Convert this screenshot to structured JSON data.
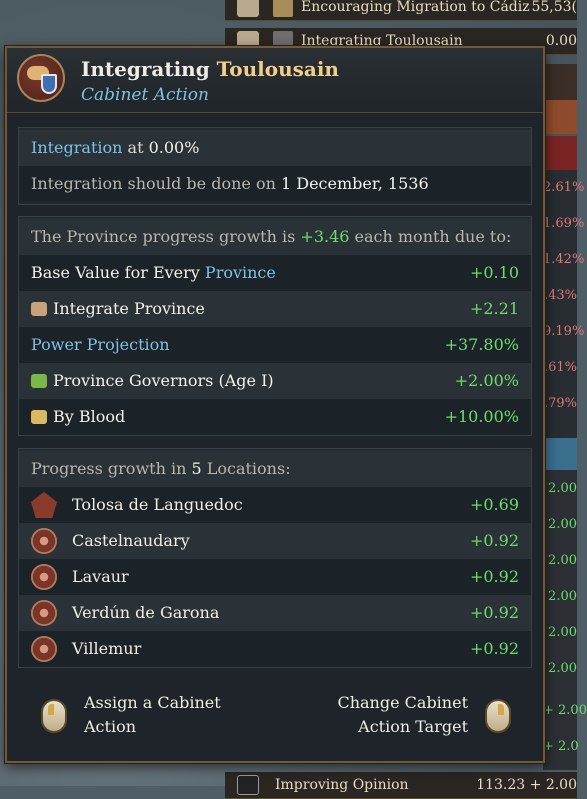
{
  "background_list": [
    {
      "name": "Encouraging Migration to Cádiz",
      "value": "55,53("
    },
    {
      "name": "Integrating Toulousain",
      "value": "0.00"
    }
  ],
  "background_bottom": {
    "name": "Improving Opinion",
    "value": "113.23 + 2.00"
  },
  "side_values": [
    {
      "text": "2.61%",
      "color": "#e07878"
    },
    {
      "text": "1.69%",
      "color": "#e07878"
    },
    {
      "text": "1.42%",
      "color": "#e07878"
    },
    {
      "text": ".43%",
      "color": "#e07878"
    },
    {
      "text": "9.19%",
      "color": "#e07878"
    },
    {
      "text": ".61%",
      "color": "#e07878"
    },
    {
      "text": ".79%",
      "color": "#e07878"
    },
    {
      "text": "2.00",
      "color": "#6ddc6d"
    },
    {
      "text": "2.00",
      "color": "#6ddc6d"
    },
    {
      "text": "2.00",
      "color": "#6ddc6d"
    },
    {
      "text": "2.00",
      "color": "#6ddc6d"
    },
    {
      "text": "2.00",
      "color": "#6ddc6d"
    },
    {
      "text": "2.00",
      "color": "#6ddc6d"
    },
    {
      "text": "+ 2.00",
      "color": "#6ddc6d"
    },
    {
      "text": "+ 2.0",
      "color": "#6ddc6d"
    }
  ],
  "tooltip": {
    "title_prefix": "Integrating ",
    "title_highlight": "Toulousain",
    "subtitle": "Cabinet Action",
    "status": {
      "integration_label": "Integration",
      "integration_at": " at ",
      "integration_value": "0.00%",
      "done_text": "Integration should be done on ",
      "done_date": "1 December, 1536"
    },
    "growth": {
      "intro_prefix": "The Province progress growth is ",
      "intro_value": "+3.46",
      "intro_suffix": " each month due to:",
      "items": [
        {
          "pre": "Base Value for Every ",
          "hl": "Province",
          "value": "+0.10",
          "icon": ""
        },
        {
          "pre": "Integrate Province",
          "hl": "",
          "value": "+2.21",
          "icon": "people-icon"
        },
        {
          "pre": "",
          "hl": "Power Projection",
          "value": "+37.80%",
          "icon": ""
        },
        {
          "pre": "Province Governors (Age I)",
          "hl": "",
          "value": "+2.00%",
          "icon": "flask-icon"
        },
        {
          "pre": "By Blood",
          "hl": "",
          "value": "+10.00%",
          "icon": "key-icon"
        }
      ]
    },
    "locations": {
      "header_prefix": "Progress growth in ",
      "header_count": "5",
      "header_suffix": " Locations:",
      "items": [
        {
          "name": "Tolosa de Languedoc",
          "value": "+0.69",
          "icon": "capital-icon"
        },
        {
          "name": "Castelnaudary",
          "value": "+0.92",
          "icon": "location-icon"
        },
        {
          "name": "Lavaur",
          "value": "+0.92",
          "icon": "location-icon"
        },
        {
          "name": "Verdún de Garona",
          "value": "+0.92",
          "icon": "location-icon"
        },
        {
          "name": "Villemur",
          "value": "+0.92",
          "icon": "location-icon"
        }
      ]
    },
    "footer": {
      "left_line1": "Assign a Cabinet",
      "left_line2": "Action",
      "right_line1": "Change Cabinet",
      "right_line2": "Action Target"
    }
  }
}
